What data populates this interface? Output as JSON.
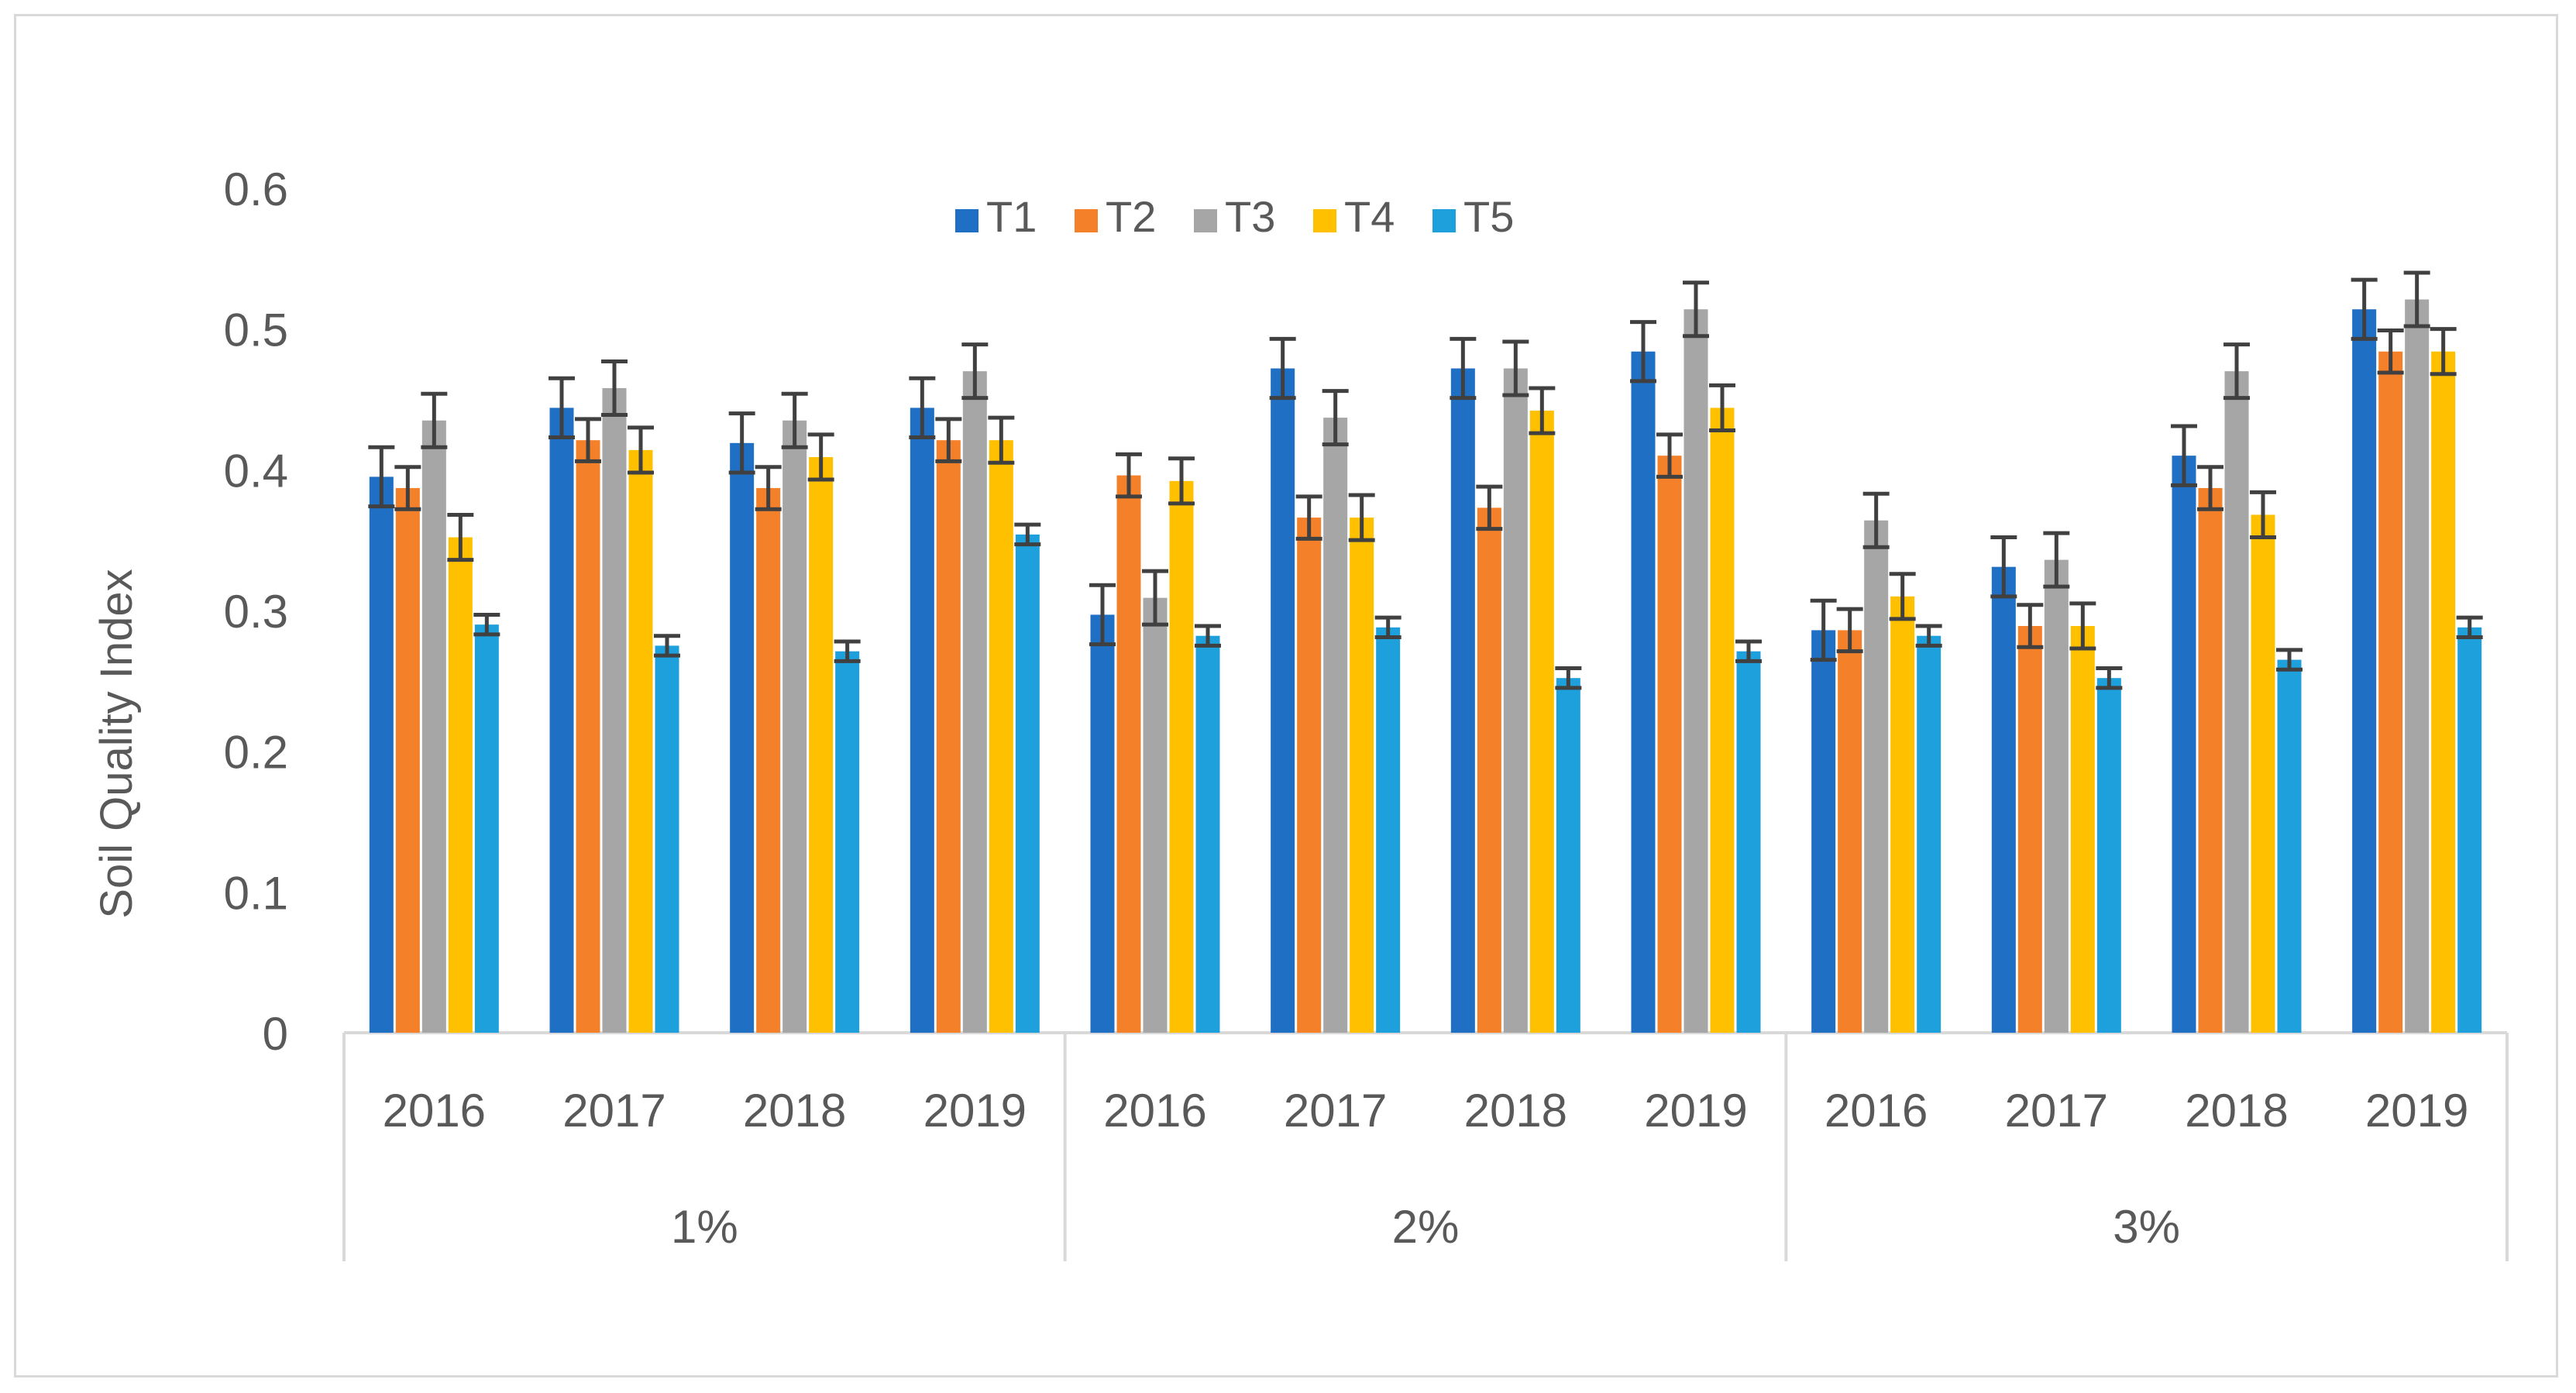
{
  "chart_data": {
    "type": "bar",
    "title": "",
    "ylabel": "Soil Quality Index",
    "xlabel": "",
    "ylim": [
      0,
      0.6
    ],
    "yticks": [
      "0",
      "0.1",
      "0.2",
      "0.3",
      "0.4",
      "0.5",
      "0.6"
    ],
    "ytick_values": [
      0,
      0.1,
      0.2,
      0.3,
      0.4,
      0.5,
      0.6
    ],
    "legend_position": "top-center",
    "groups": [
      {
        "label": "1%",
        "categories": [
          "2016",
          "2017",
          "2018",
          "2019"
        ]
      },
      {
        "label": "2%",
        "categories": [
          "2016",
          "2017",
          "2018",
          "2019"
        ]
      },
      {
        "label": "3%",
        "categories": [
          "2016",
          "2017",
          "2018",
          "2019"
        ]
      }
    ],
    "series": [
      {
        "name": "T1",
        "color": "#1f6fc5",
        "values": [
          0.395,
          0.444,
          0.419,
          0.444,
          0.297,
          0.472,
          0.472,
          0.484,
          0.286,
          0.331,
          0.41,
          0.514
        ],
        "errors": [
          0.021,
          0.021,
          0.021,
          0.021,
          0.021,
          0.021,
          0.021,
          0.021,
          0.021,
          0.021,
          0.021,
          0.021
        ]
      },
      {
        "name": "T2",
        "color": "#f5802a",
        "values": [
          0.387,
          0.421,
          0.387,
          0.421,
          0.396,
          0.366,
          0.373,
          0.41,
          0.286,
          0.289,
          0.387,
          0.484
        ],
        "errors": [
          0.015,
          0.015,
          0.015,
          0.015,
          0.015,
          0.015,
          0.015,
          0.015,
          0.015,
          0.015,
          0.015,
          0.015
        ]
      },
      {
        "name": "T3",
        "color": "#a6a6a6",
        "values": [
          0.435,
          0.458,
          0.435,
          0.47,
          0.309,
          0.437,
          0.472,
          0.514,
          0.364,
          0.336,
          0.47,
          0.521
        ],
        "errors": [
          0.019,
          0.019,
          0.019,
          0.019,
          0.019,
          0.019,
          0.019,
          0.019,
          0.019,
          0.019,
          0.019,
          0.019
        ]
      },
      {
        "name": "T4",
        "color": "#ffc000",
        "values": [
          0.352,
          0.414,
          0.409,
          0.421,
          0.392,
          0.366,
          0.442,
          0.444,
          0.31,
          0.289,
          0.368,
          0.484
        ],
        "errors": [
          0.016,
          0.016,
          0.016,
          0.016,
          0.016,
          0.016,
          0.016,
          0.016,
          0.016,
          0.016,
          0.016,
          0.016
        ]
      },
      {
        "name": "T5",
        "color": "#1ea0dc",
        "values": [
          0.29,
          0.275,
          0.271,
          0.354,
          0.282,
          0.288,
          0.252,
          0.271,
          0.282,
          0.252,
          0.265,
          0.288
        ],
        "errors": [
          0.007,
          0.007,
          0.007,
          0.007,
          0.007,
          0.007,
          0.007,
          0.007,
          0.007,
          0.007,
          0.007,
          0.007
        ]
      }
    ]
  }
}
